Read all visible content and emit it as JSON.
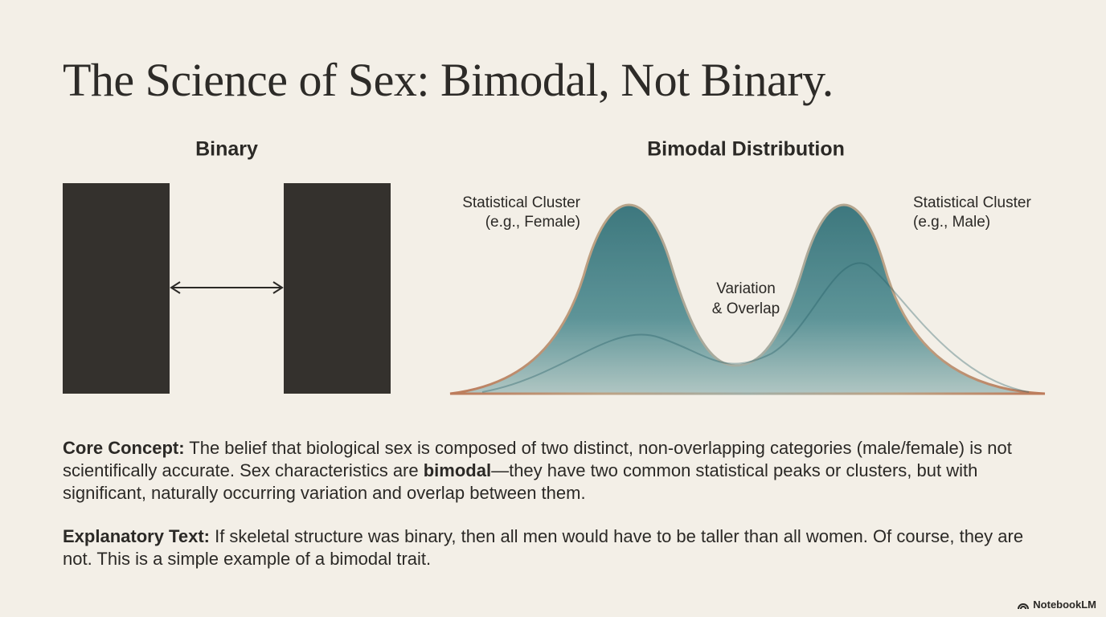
{
  "title": "The Science of Sex: Bimodal, Not Binary.",
  "binary": {
    "heading": "Binary"
  },
  "bimodal": {
    "heading": "Bimodal Distribution",
    "left_label": [
      "Statistical Cluster",
      "(e.g., Female)"
    ],
    "right_label": [
      "Statistical Cluster",
      "(e.g., Male)"
    ],
    "center_label": [
      "Variation",
      "& Overlap"
    ]
  },
  "core_concept": {
    "label": "Core Concept:",
    "text_before": " The belief that biological sex is composed of two distinct, non-overlapping categories (male/female) is not scientifically accurate. Sex characteristics are ",
    "emphasis": "bimodal",
    "text_after": "—they have two common statistical peaks or clusters, but with significant, naturally occurring variation and overlap between them."
  },
  "explanatory": {
    "label": "Explanatory Text:",
    "text": " If skeletal structure was binary, then all men would have to be taller than all women. Of course, they are not. This is a simple example of a bimodal trait."
  },
  "footer": "NotebookLM"
}
